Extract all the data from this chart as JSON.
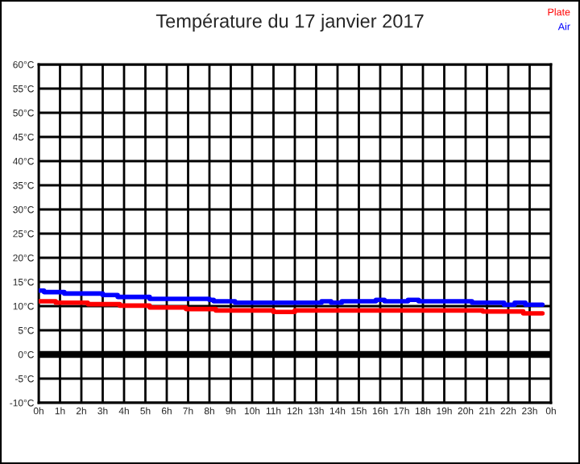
{
  "chart_data": {
    "type": "step",
    "title": "Température du 17 janvier 2017",
    "series": [
      {
        "name": "Plate",
        "color": "#ff0000",
        "x": [
          "2017-01-17T00:00",
          "2017-01-17T00:48",
          "2017-01-17T02:18",
          "2017-01-17T03:48",
          "2017-01-17T05:12",
          "2017-01-17T06:54",
          "2017-01-17T08:18",
          "2017-01-17T11:00",
          "2017-01-17T12:00",
          "2017-01-17T20:48",
          "2017-01-17T22:42",
          "2017-01-17T23:36"
        ],
        "values": [
          11.0,
          10.7,
          10.4,
          10.1,
          9.7,
          9.4,
          9.1,
          8.8,
          9.1,
          8.9,
          8.5,
          8.5
        ]
      },
      {
        "name": "Air",
        "color": "#0000ff",
        "x": [
          "2017-01-17T00:00",
          "2017-01-17T00:15",
          "2017-01-17T01:12",
          "2017-01-17T03:00",
          "2017-01-17T03:42",
          "2017-01-17T05:12",
          "2017-01-17T08:00",
          "2017-01-17T08:12",
          "2017-01-17T09:12",
          "2017-01-17T13:15",
          "2017-01-17T13:42",
          "2017-01-17T14:12",
          "2017-01-17T15:48",
          "2017-01-17T16:12",
          "2017-01-17T17:18",
          "2017-01-17T17:48",
          "2017-01-17T20:18",
          "2017-01-17T21:48",
          "2017-01-17T22:18",
          "2017-01-17T22:48",
          "2017-01-17T23:36"
        ],
        "values": [
          13.2,
          12.9,
          12.6,
          12.3,
          11.9,
          11.5,
          11.3,
          11.0,
          10.7,
          11.0,
          10.7,
          11.0,
          11.3,
          11.0,
          11.3,
          11.0,
          10.7,
          10.3,
          10.7,
          10.3,
          10.3
        ]
      }
    ],
    "xlim": [
      "2017-01-17T00:00",
      "2017-01-18T00:00"
    ],
    "xticks": [
      {
        "value": "2017-01-17T00:00",
        "label": "0h"
      },
      {
        "value": "2017-01-17T01:00",
        "label": "1h"
      },
      {
        "value": "2017-01-17T02:00",
        "label": "2h"
      },
      {
        "value": "2017-01-17T03:00",
        "label": "3h"
      },
      {
        "value": "2017-01-17T04:00",
        "label": "4h"
      },
      {
        "value": "2017-01-17T05:00",
        "label": "5h"
      },
      {
        "value": "2017-01-17T06:00",
        "label": "6h"
      },
      {
        "value": "2017-01-17T07:00",
        "label": "7h"
      },
      {
        "value": "2017-01-17T08:00",
        "label": "8h"
      },
      {
        "value": "2017-01-17T09:00",
        "label": "9h"
      },
      {
        "value": "2017-01-17T10:00",
        "label": "10h"
      },
      {
        "value": "2017-01-17T11:00",
        "label": "11h"
      },
      {
        "value": "2017-01-17T12:00",
        "label": "12h"
      },
      {
        "value": "2017-01-17T13:00",
        "label": "13h"
      },
      {
        "value": "2017-01-17T14:00",
        "label": "14h"
      },
      {
        "value": "2017-01-17T15:00",
        "label": "15h"
      },
      {
        "value": "2017-01-17T16:00",
        "label": "16h"
      },
      {
        "value": "2017-01-17T17:00",
        "label": "17h"
      },
      {
        "value": "2017-01-17T18:00",
        "label": "18h"
      },
      {
        "value": "2017-01-17T19:00",
        "label": "19h"
      },
      {
        "value": "2017-01-17T20:00",
        "label": "20h"
      },
      {
        "value": "2017-01-17T21:00",
        "label": "21h"
      },
      {
        "value": "2017-01-17T22:00",
        "label": "22h"
      },
      {
        "value": "2017-01-17T23:00",
        "label": "23h"
      },
      {
        "value": "2017-01-18T00:00",
        "label": "0h"
      }
    ],
    "ylim": [
      -10,
      60
    ],
    "yticks": [
      {
        "value": -10,
        "label": "-10°C"
      },
      {
        "value": -5,
        "label": "-5°C"
      },
      {
        "value": 0,
        "label": "0°C"
      },
      {
        "value": 5,
        "label": "5°C"
      },
      {
        "value": 10,
        "label": "10°C"
      },
      {
        "value": 15,
        "label": "15°C"
      },
      {
        "value": 20,
        "label": "20°C"
      },
      {
        "value": 25,
        "label": "25°C"
      },
      {
        "value": 30,
        "label": "30°C"
      },
      {
        "value": 35,
        "label": "35°C"
      },
      {
        "value": 40,
        "label": "40°C"
      },
      {
        "value": 45,
        "label": "45°C"
      },
      {
        "value": 50,
        "label": "50°C"
      },
      {
        "value": 55,
        "label": "55°C"
      },
      {
        "value": 60,
        "label": "60°C"
      }
    ],
    "ref_lines": [
      {
        "axis": "y",
        "value": 0,
        "color": "#000000"
      }
    ],
    "grid": true,
    "legend": "top right"
  }
}
